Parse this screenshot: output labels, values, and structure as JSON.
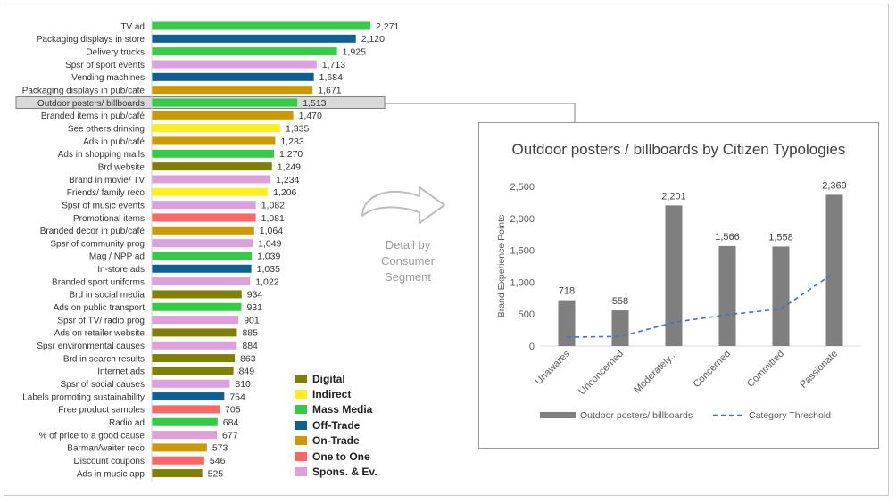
{
  "chart_data": [
    {
      "type": "bar",
      "orientation": "horizontal",
      "categories": [
        "TV ad",
        "Packaging displays in store",
        "Delivery trucks",
        "Spsr of sport events",
        "Vending machines",
        "Packaging displays in pub/café",
        "Outdoor posters/ billboards",
        "Branded items in pub/café",
        "See others drinking",
        "Ads in pub/café",
        "Ads in shopping malls",
        "Brd website",
        "Brand in movie/ TV",
        "Friends/ family reco",
        "Spsr of music events",
        "Promotional items",
        "Branded decor in pub/café",
        "Spsr of community prog",
        "Mag / NPP ad",
        "In-store ads",
        "Branded sport uniforms",
        "Brd in social media",
        "Ads on public transport",
        "Spsr of TV/ radio prog",
        "Ads on retailer website",
        "Spsr environmental causes",
        "Brd in search results",
        "Internet ads",
        "Spsr of social causes",
        "Labels promoting sustainability",
        "Free product samples",
        "Radio ad",
        "% of price to a good cause",
        "Barman/waiter reco",
        "Discount coupons",
        "Ads in music app"
      ],
      "values": [
        2271,
        2120,
        1925,
        1713,
        1684,
        1671,
        1513,
        1470,
        1335,
        1283,
        1270,
        1249,
        1234,
        1206,
        1082,
        1081,
        1064,
        1049,
        1039,
        1035,
        1022,
        934,
        931,
        901,
        885,
        884,
        863,
        849,
        810,
        754,
        705,
        684,
        677,
        573,
        546,
        525
      ],
      "value_labels": [
        "2,271",
        "2,120",
        "1,925",
        "1,713",
        "1,684",
        "1,671",
        "1,513",
        "1,470",
        "1,335",
        "1,283",
        "1,270",
        "1,249",
        "1,234",
        "1,206",
        "1,082",
        "1,081",
        "1,064",
        "1,049",
        "1,039",
        "1,035",
        "1,022",
        "934",
        "931",
        "901",
        "885",
        "884",
        "863",
        "849",
        "810",
        "754",
        "705",
        "684",
        "677",
        "573",
        "546",
        "525"
      ],
      "groups": [
        "Mass Media",
        "Off-Trade",
        "Mass Media",
        "Spons. & Ev.",
        "Off-Trade",
        "On-Trade",
        "Mass Media",
        "On-Trade",
        "Indirect",
        "On-Trade",
        "Mass Media",
        "Digital",
        "Spons. & Ev.",
        "Indirect",
        "Spons. & Ev.",
        "One to One",
        "On-Trade",
        "Spons. & Ev.",
        "Mass Media",
        "Off-Trade",
        "Spons. & Ev.",
        "Digital",
        "Mass Media",
        "Spons. & Ev.",
        "Digital",
        "Spons. & Ev.",
        "Digital",
        "Digital",
        "Spons. & Ev.",
        "Off-Trade",
        "One to One",
        "Mass Media",
        "Spons. & Ev.",
        "On-Trade",
        "One to One",
        "Digital"
      ],
      "highlighted": "Outdoor posters/ billboards",
      "xlim": [
        0,
        2300
      ],
      "legend": {
        "placement": "bottom-right",
        "items": [
          {
            "name": "Digital",
            "color": "#808000"
          },
          {
            "name": "Indirect",
            "color": "#ffee22"
          },
          {
            "name": "Mass Media",
            "color": "#33cc44"
          },
          {
            "name": "Off-Trade",
            "color": "#0d5f94"
          },
          {
            "name": "On-Trade",
            "color": "#cc9900"
          },
          {
            "name": "One to One",
            "color": "#ff6666"
          },
          {
            "name": "Spons. & Ev.",
            "color": "#dda0dd"
          }
        ]
      }
    },
    {
      "type": "bar",
      "title": "Outdoor posters / billboards by Citizen Typologies",
      "ylabel": "Brand Experience Points",
      "categories": [
        "Unawares",
        "Unconcerned",
        "Moderately...",
        "Concerned",
        "Committed",
        "Passionate"
      ],
      "ylim": [
        0,
        2500
      ],
      "yticks": [
        "0",
        "500",
        "1,000",
        "1,500",
        "2,000",
        "2,500"
      ],
      "grid": false,
      "legend_placement": "bottom",
      "series": [
        {
          "name": "Outdoor posters/ billboards",
          "type": "bar",
          "color": "#7f7f7f",
          "values": [
            718,
            558,
            2201,
            1566,
            1558,
            2369
          ],
          "value_labels": [
            "718",
            "558",
            "2,201",
            "1,566",
            "1,558",
            "2,369"
          ]
        },
        {
          "name": "Category Threshold",
          "type": "line",
          "style": "dashed",
          "color": "#4472c4",
          "values": [
            140,
            150,
            370,
            490,
            580,
            1150
          ]
        }
      ]
    }
  ],
  "annotation": {
    "lines": [
      "Detail by",
      "Consumer",
      "Segment"
    ]
  }
}
